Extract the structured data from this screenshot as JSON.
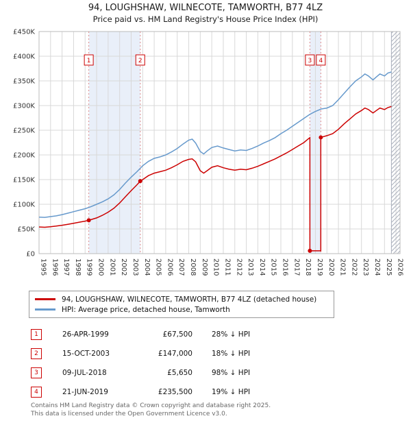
{
  "title": "94, LOUGHSHAW, WILNECOTE, TAMWORTH, B77 4LZ",
  "subtitle": "Price paid vs. HM Land Registry's House Price Index (HPI)",
  "chart_data": {
    "type": "line",
    "x_axis": {
      "min": 1995,
      "max": 2026.35
    },
    "x_ticks": [
      1995,
      1996,
      1997,
      1998,
      1999,
      2000,
      2001,
      2002,
      2003,
      2004,
      2005,
      2006,
      2007,
      2008,
      2009,
      2010,
      2011,
      2012,
      2013,
      2014,
      2015,
      2016,
      2017,
      2018,
      2019,
      2020,
      2021,
      2022,
      2023,
      2024,
      2025,
      2026
    ],
    "y_axis": {
      "min": 0,
      "max": 450000
    },
    "y_ticks": [
      [
        0,
        "£0"
      ],
      [
        50000,
        "£50K"
      ],
      [
        100000,
        "£100K"
      ],
      [
        150000,
        "£150K"
      ],
      [
        200000,
        "£200K"
      ],
      [
        250000,
        "£250K"
      ],
      [
        300000,
        "£300K"
      ],
      [
        350000,
        "£350K"
      ],
      [
        400000,
        "£400K"
      ],
      [
        450000,
        "£450K"
      ]
    ],
    "hatch_start": 2025.6,
    "bands": [
      [
        1999.32,
        2003.79
      ],
      [
        2018.52,
        2019.47
      ]
    ],
    "band_color": "#e9eff9",
    "series": [
      {
        "name": "price-paid",
        "label": "94, LOUGHSHAW, WILNECOTE, TAMWORTH, B77 4LZ (detached house)",
        "color": "#cc0000",
        "points": [
          [
            1995,
            54000
          ],
          [
            1995.5,
            53500
          ],
          [
            1996,
            54500
          ],
          [
            1996.5,
            55800
          ],
          [
            1997,
            57500
          ],
          [
            1997.5,
            59500
          ],
          [
            1998,
            61500
          ],
          [
            1998.5,
            63800
          ],
          [
            1999,
            65800
          ],
          [
            1999.32,
            67500
          ],
          [
            2000,
            72300
          ],
          [
            2000.5,
            77700
          ],
          [
            2001,
            84000
          ],
          [
            2001.5,
            92000
          ],
          [
            2002,
            102700
          ],
          [
            2002.5,
            115300
          ],
          [
            2003,
            127600
          ],
          [
            2003.5,
            139400
          ],
          [
            2003.79,
            147000
          ],
          [
            2004,
            150000
          ],
          [
            2004.5,
            158000
          ],
          [
            2005,
            163000
          ],
          [
            2005.5,
            166000
          ],
          [
            2006,
            169000
          ],
          [
            2006.5,
            174000
          ],
          [
            2007,
            180000
          ],
          [
            2007.5,
            187000
          ],
          [
            2008,
            191000
          ],
          [
            2008.3,
            192000
          ],
          [
            2008.6,
            186000
          ],
          [
            2009,
            168000
          ],
          [
            2009.3,
            163000
          ],
          [
            2009.6,
            168000
          ],
          [
            2010,
            175000
          ],
          [
            2010.5,
            178000
          ],
          [
            2011,
            174000
          ],
          [
            2011.5,
            171000
          ],
          [
            2012,
            169000
          ],
          [
            2012.5,
            171000
          ],
          [
            2013,
            170000
          ],
          [
            2013.5,
            173000
          ],
          [
            2014,
            177000
          ],
          [
            2014.5,
            182000
          ],
          [
            2015,
            187000
          ],
          [
            2015.5,
            192000
          ],
          [
            2016,
            198000
          ],
          [
            2016.5,
            204000
          ],
          [
            2017,
            211000
          ],
          [
            2017.5,
            218000
          ],
          [
            2018,
            225000
          ],
          [
            2018.3,
            231000
          ],
          [
            2018.52,
            235000
          ],
          [
            2018.52,
            5650
          ],
          [
            2019,
            5650
          ],
          [
            2019.47,
            5650
          ],
          [
            2019.47,
            235500
          ],
          [
            2020,
            239000
          ],
          [
            2020.5,
            243000
          ],
          [
            2021,
            252000
          ],
          [
            2021.5,
            263000
          ],
          [
            2022,
            273000
          ],
          [
            2022.5,
            283000
          ],
          [
            2023,
            290000
          ],
          [
            2023.3,
            295000
          ],
          [
            2023.6,
            292000
          ],
          [
            2024,
            285000
          ],
          [
            2024.3,
            290000
          ],
          [
            2024.6,
            295000
          ],
          [
            2025,
            292000
          ],
          [
            2025.3,
            296000
          ],
          [
            2025.6,
            298000
          ]
        ]
      },
      {
        "name": "hpi",
        "label": "HPI: Average price, detached house, Tamworth",
        "color": "#6699cc",
        "points": [
          [
            1995,
            74000
          ],
          [
            1995.5,
            73500
          ],
          [
            1996,
            75000
          ],
          [
            1996.5,
            76500
          ],
          [
            1997,
            79000
          ],
          [
            1997.5,
            82000
          ],
          [
            1998,
            85000
          ],
          [
            1998.5,
            88000
          ],
          [
            1999,
            91000
          ],
          [
            1999.5,
            95000
          ],
          [
            2000,
            100000
          ],
          [
            2000.5,
            105000
          ],
          [
            2001,
            111000
          ],
          [
            2001.5,
            119000
          ],
          [
            2002,
            130000
          ],
          [
            2002.5,
            143000
          ],
          [
            2003,
            155000
          ],
          [
            2003.5,
            166000
          ],
          [
            2004,
            178000
          ],
          [
            2004.5,
            187000
          ],
          [
            2005,
            193000
          ],
          [
            2005.5,
            196000
          ],
          [
            2006,
            200000
          ],
          [
            2006.5,
            206000
          ],
          [
            2007,
            213000
          ],
          [
            2007.5,
            222000
          ],
          [
            2008,
            230000
          ],
          [
            2008.3,
            232000
          ],
          [
            2008.6,
            224000
          ],
          [
            2009,
            207000
          ],
          [
            2009.3,
            202000
          ],
          [
            2009.6,
            208000
          ],
          [
            2010,
            215000
          ],
          [
            2010.5,
            218000
          ],
          [
            2011,
            214000
          ],
          [
            2011.5,
            211000
          ],
          [
            2012,
            208000
          ],
          [
            2012.5,
            210000
          ],
          [
            2013,
            209000
          ],
          [
            2013.5,
            213000
          ],
          [
            2014,
            218000
          ],
          [
            2014.5,
            224000
          ],
          [
            2015,
            229000
          ],
          [
            2015.5,
            235000
          ],
          [
            2016,
            243000
          ],
          [
            2016.5,
            250000
          ],
          [
            2017,
            258000
          ],
          [
            2017.5,
            266000
          ],
          [
            2018,
            274000
          ],
          [
            2018.5,
            282000
          ],
          [
            2019,
            288000
          ],
          [
            2019.5,
            293000
          ],
          [
            2020,
            295000
          ],
          [
            2020.5,
            300000
          ],
          [
            2021,
            312000
          ],
          [
            2021.5,
            325000
          ],
          [
            2022,
            338000
          ],
          [
            2022.5,
            350000
          ],
          [
            2023,
            358000
          ],
          [
            2023.3,
            364000
          ],
          [
            2023.6,
            360000
          ],
          [
            2024,
            352000
          ],
          [
            2024.3,
            358000
          ],
          [
            2024.6,
            364000
          ],
          [
            2025,
            360000
          ],
          [
            2025.3,
            366000
          ],
          [
            2025.6,
            368000
          ]
        ]
      }
    ],
    "sales": [
      {
        "n": "1",
        "x": 1999.32,
        "y": 67500
      },
      {
        "n": "2",
        "x": 2003.79,
        "y": 147000
      },
      {
        "n": "3",
        "x": 2018.52,
        "y": 5650
      },
      {
        "n": "4",
        "x": 2019.47,
        "y": 235500
      }
    ]
  },
  "legend": {
    "items": [
      {
        "color": "#cc0000",
        "label": "94, LOUGHSHAW, WILNECOTE, TAMWORTH, B77 4LZ (detached house)"
      },
      {
        "color": "#6699cc",
        "label": "HPI: Average price, detached house, Tamworth"
      }
    ]
  },
  "transactions": [
    {
      "n": "1",
      "date": "26-APR-1999",
      "price": "£67,500",
      "delta": "28% ↓ HPI"
    },
    {
      "n": "2",
      "date": "15-OCT-2003",
      "price": "£147,000",
      "delta": "18% ↓ HPI"
    },
    {
      "n": "3",
      "date": "09-JUL-2018",
      "price": "£5,650",
      "delta": "98% ↓ HPI"
    },
    {
      "n": "4",
      "date": "21-JUN-2019",
      "price": "£235,500",
      "delta": "19% ↓ HPI"
    }
  ],
  "footer": {
    "line1": "Contains HM Land Registry data © Crown copyright and database right 2025.",
    "line2": "This data is licensed under the Open Government Licence v3.0."
  }
}
